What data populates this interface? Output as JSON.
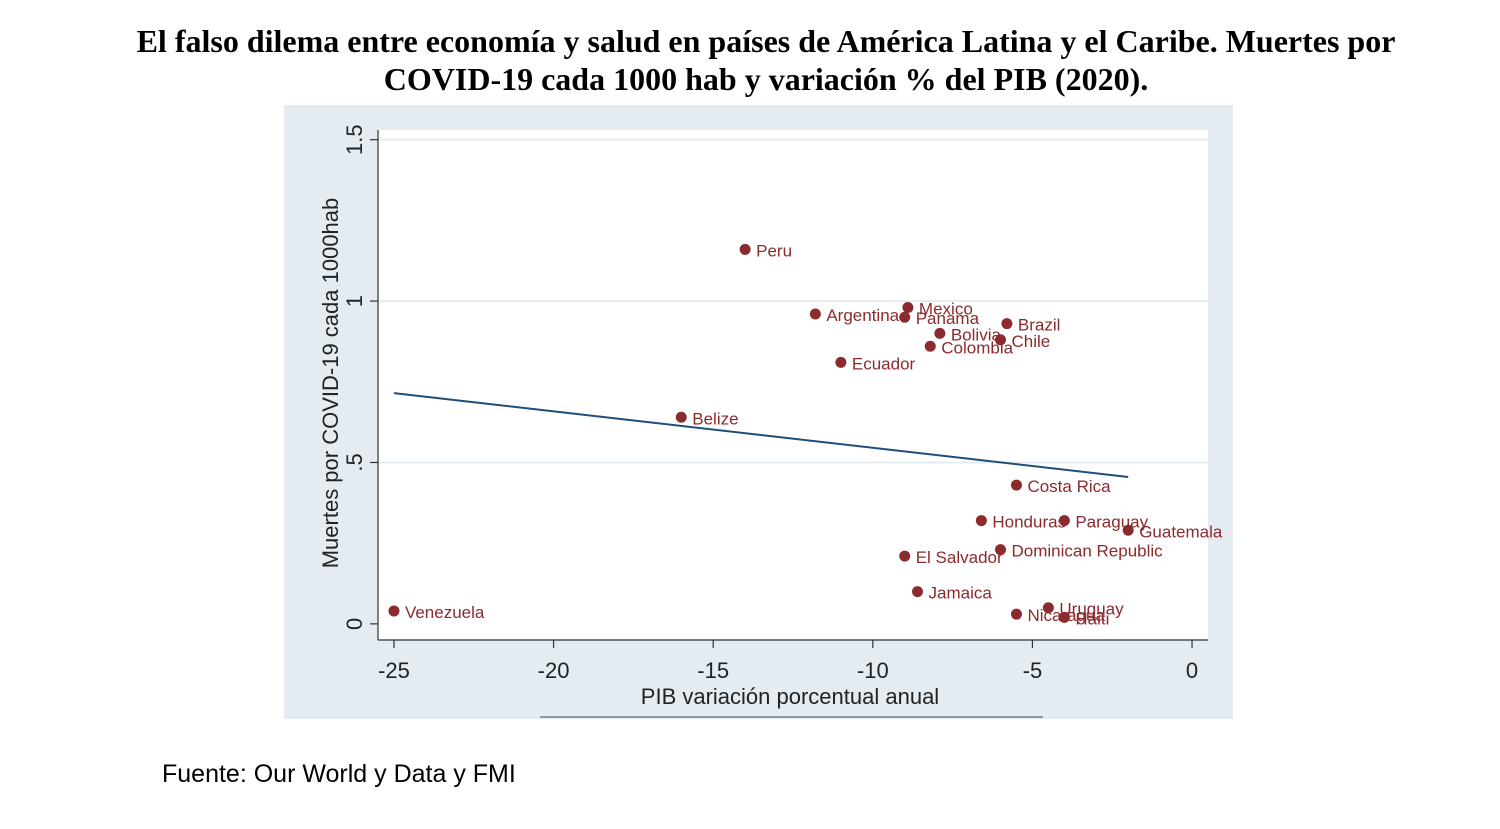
{
  "header": {
    "title_line1": "El falso dilema entre economía y salud en países de América Latina y el Caribe. Muertes por",
    "title_line2": "COVID-19 cada 1000 hab y variación % del PIB (2020)."
  },
  "footer": {
    "source": "Fuente: Our World y Data y FMI"
  },
  "colors": {
    "outer_bg": "#e4ecf2",
    "plot_bg": "#ffffff",
    "grid": "#e4ecf2",
    "marker": "#8b2b2e",
    "label": "#8b2b2e",
    "fit_line": "#1f4e79",
    "axis": "#333333"
  },
  "chart_data": {
    "type": "scatter",
    "xlabel": "PIB variación porcentual anual",
    "ylabel": "Muertes por COVID-19 cada 1000hab",
    "xlim": [
      -25.5,
      0.5
    ],
    "ylim": [
      -0.05,
      1.53
    ],
    "xticks": [
      -25,
      -20,
      -15,
      -10,
      -5,
      0
    ],
    "xtick_labels": [
      "-25",
      "-20",
      "-15",
      "-10",
      "-5",
      "0"
    ],
    "yticks": [
      0,
      0.5,
      1,
      1.5
    ],
    "ytick_labels": [
      "0",
      ".5",
      "1",
      "1.5"
    ],
    "grid": true,
    "points": [
      {
        "label": "Peru",
        "x": -14.0,
        "y": 1.16
      },
      {
        "label": "Mexico",
        "x": -8.9,
        "y": 0.98
      },
      {
        "label": "Argentina",
        "x": -11.8,
        "y": 0.96
      },
      {
        "label": "Panama",
        "x": -9.0,
        "y": 0.95
      },
      {
        "label": "Brazil",
        "x": -5.8,
        "y": 0.93
      },
      {
        "label": "Bolivia",
        "x": -7.9,
        "y": 0.9
      },
      {
        "label": "Chile",
        "x": -6.0,
        "y": 0.88
      },
      {
        "label": "Colombia",
        "x": -8.2,
        "y": 0.86
      },
      {
        "label": "Ecuador",
        "x": -11.0,
        "y": 0.81
      },
      {
        "label": "Belize",
        "x": -16.0,
        "y": 0.64
      },
      {
        "label": "Costa Rica",
        "x": -5.5,
        "y": 0.43
      },
      {
        "label": "Honduras",
        "x": -6.6,
        "y": 0.32
      },
      {
        "label": "Paraguay",
        "x": -4.0,
        "y": 0.32
      },
      {
        "label": "Guatemala",
        "x": -2.0,
        "y": 0.29
      },
      {
        "label": "Dominican Republic",
        "x": -6.0,
        "y": 0.23
      },
      {
        "label": "El Salvador",
        "x": -9.0,
        "y": 0.21
      },
      {
        "label": "Jamaica",
        "x": -8.6,
        "y": 0.1
      },
      {
        "label": "Uruguay",
        "x": -4.5,
        "y": 0.05
      },
      {
        "label": "Nicaragua",
        "x": -5.5,
        "y": 0.03
      },
      {
        "label": "Haiti",
        "x": -4.0,
        "y": 0.02
      },
      {
        "label": "Venezuela",
        "x": -25.0,
        "y": 0.04
      }
    ],
    "fit_line": {
      "x": [
        -25.0,
        -2.0
      ],
      "y": [
        0.715,
        0.455
      ]
    }
  }
}
